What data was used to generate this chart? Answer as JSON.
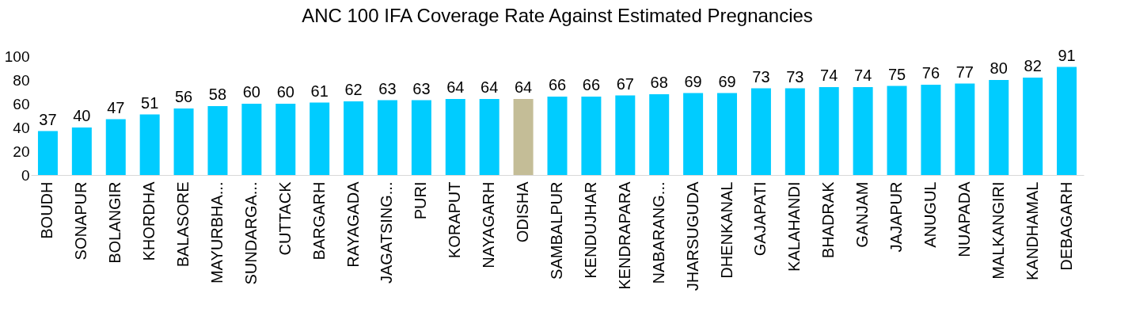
{
  "chart_data": {
    "type": "bar",
    "title": "ANC 100 IFA Coverage Rate Against Estimated Pregnancies",
    "categories": [
      "BOUDH",
      "SONAPUR",
      "BOLANGIR",
      "KHORDHA",
      "BALASORE",
      "MAYURBHA...",
      "SUNDARGA...",
      "CUTTACK",
      "BARGARH",
      "RAYAGADA",
      "JAGATSING...",
      "PURI",
      "KORAPUT",
      "NAYAGARH",
      "ODISHA",
      "SAMBALPUR",
      "KENDUJHAR",
      "KENDRAPARA",
      "NABARANG...",
      "JHARSUGUDA",
      "DHENKANAL",
      "GAJAPATI",
      "KALAHANDI",
      "BHADRAK",
      "GANJAM",
      "JAJAPUR",
      "ANUGUL",
      "NUAPADA",
      "MALKANGIRI",
      "KANDHAMAL",
      "DEBAGARH"
    ],
    "values": [
      37,
      40,
      47,
      51,
      56,
      58,
      60,
      60,
      61,
      62,
      63,
      63,
      64,
      64,
      64,
      66,
      66,
      67,
      68,
      69,
      69,
      73,
      73,
      74,
      74,
      75,
      76,
      77,
      80,
      82,
      91
    ],
    "colors": [
      "#00ccff",
      "#00ccff",
      "#00ccff",
      "#00ccff",
      "#00ccff",
      "#00ccff",
      "#00ccff",
      "#00ccff",
      "#00ccff",
      "#00ccff",
      "#00ccff",
      "#00ccff",
      "#00ccff",
      "#00ccff",
      "#c4bd97",
      "#00ccff",
      "#00ccff",
      "#00ccff",
      "#00ccff",
      "#00ccff",
      "#00ccff",
      "#00ccff",
      "#00ccff",
      "#00ccff",
      "#00ccff",
      "#00ccff",
      "#00ccff",
      "#00ccff",
      "#00ccff",
      "#00ccff",
      "#00ccff"
    ],
    "ylim": [
      0,
      100
    ],
    "yticks": [
      0,
      20,
      40,
      60,
      80,
      100
    ],
    "grid": false,
    "data_labels": true,
    "legend": false
  }
}
